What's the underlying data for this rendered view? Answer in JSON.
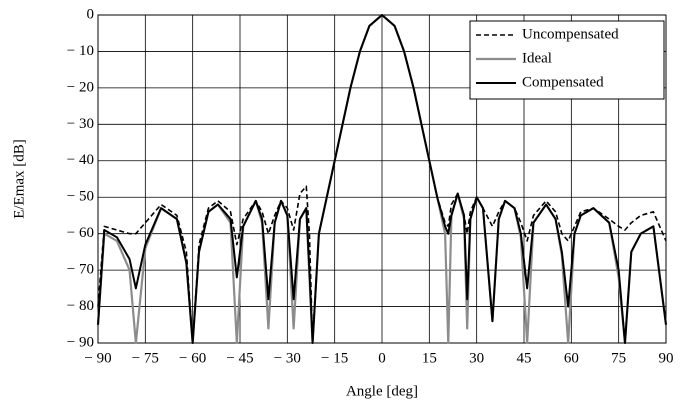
{
  "chart_data": {
    "type": "line",
    "xlabel": "Angle [deg]",
    "ylabel": "E/Emax [dB]",
    "x": [
      -90,
      -88,
      -84,
      -80,
      -78,
      -75,
      -70,
      -65,
      -62,
      -60,
      -58,
      -55,
      -52,
      -48,
      -46,
      -44,
      -40,
      -38,
      -36,
      -34,
      -32,
      -30,
      -28,
      -26,
      -24,
      -23,
      -22,
      -20,
      -17.5,
      -15,
      -12.5,
      -10,
      -7,
      -4,
      0,
      4,
      7,
      10,
      12.5,
      15,
      17.5,
      20,
      21,
      22,
      24,
      26,
      27,
      28,
      30,
      32,
      35,
      37,
      39,
      42,
      44,
      46,
      48,
      52,
      55,
      57,
      59,
      61,
      63,
      67,
      72,
      75,
      77,
      79,
      82,
      86,
      90
    ],
    "series": [
      {
        "name": "Uncompensated",
        "color": "#000000",
        "dashed": true,
        "width": 1.6,
        "values": [
          -80,
          -58,
          -59,
          -60,
          -60,
          -57,
          -52,
          -55,
          -65,
          -90,
          -63,
          -53,
          -51,
          -54,
          -63,
          -56,
          -51,
          -54,
          -60,
          -55,
          -51,
          -53,
          -59,
          -49,
          -47,
          -60,
          -90,
          -60,
          -50,
          -40,
          -30,
          -20,
          -10,
          -3,
          0,
          -3,
          -10,
          -20,
          -30,
          -40,
          -50,
          -57,
          -58,
          -52,
          -49,
          -55,
          -60,
          -54,
          -50,
          -53,
          -58,
          -54,
          -51,
          -53,
          -57,
          -62,
          -55,
          -51,
          -54,
          -60,
          -62,
          -58,
          -54,
          -53,
          -56,
          -58,
          -59,
          -57,
          -55,
          -54,
          -62
        ]
      },
      {
        "name": "Ideal",
        "color": "#8c8c8c",
        "dashed": false,
        "width": 2.2,
        "values": [
          -85,
          -60,
          -62,
          -70,
          -90,
          -64,
          -53,
          -56,
          -68,
          -90,
          -65,
          -54,
          -52,
          -57,
          -90,
          -58,
          -51,
          -57,
          -86,
          -57,
          -51,
          -55,
          -86,
          -56,
          -53,
          -72,
          -90,
          -60,
          -50,
          -40,
          -30,
          -20,
          -10,
          -3,
          0,
          -3,
          -10,
          -20,
          -30,
          -40,
          -50,
          -60,
          -90,
          -55,
          -49,
          -56,
          -86,
          -56,
          -50,
          -53,
          -84,
          -56,
          -51,
          -53,
          -61,
          -90,
          -57,
          -52,
          -56,
          -66,
          -90,
          -60,
          -55,
          -53,
          -57,
          -72,
          -90,
          -65,
          -60,
          -58,
          -85
        ]
      },
      {
        "name": "Compensated",
        "color": "#000000",
        "dashed": false,
        "width": 2,
        "values": [
          -85,
          -59,
          -61,
          -67,
          -75,
          -63,
          -53,
          -56,
          -68,
          -90,
          -65,
          -54,
          -52,
          -56,
          -72,
          -58,
          -51,
          -56,
          -78,
          -57,
          -51,
          -55,
          -78,
          -56,
          -53,
          -70,
          -90,
          -60,
          -50,
          -40,
          -30,
          -20,
          -10,
          -3,
          0,
          -3,
          -10,
          -20,
          -30,
          -40,
          -50,
          -58,
          -60,
          -55,
          -49,
          -55,
          -78,
          -56,
          -50,
          -53,
          -84,
          -56,
          -51,
          -53,
          -60,
          -75,
          -57,
          -52,
          -56,
          -65,
          -80,
          -60,
          -55,
          -53,
          -57,
          -70,
          -90,
          -65,
          -60,
          -58,
          -85
        ]
      }
    ],
    "xlim": [
      -90,
      90
    ],
    "xticks": [
      {
        "value": -90,
        "label": "− 90"
      },
      {
        "value": -75,
        "label": "− 75"
      },
      {
        "value": -60,
        "label": "− 60"
      },
      {
        "value": -45,
        "label": "− 45"
      },
      {
        "value": -30,
        "label": "− 30"
      },
      {
        "value": -15,
        "label": "− 15"
      },
      0,
      15,
      30,
      45,
      60,
      75,
      90
    ],
    "ylim": [
      -90,
      0
    ],
    "yticks": [
      {
        "value": -90,
        "label": "− 90"
      },
      {
        "value": -80,
        "label": "− 80"
      },
      {
        "value": -70,
        "label": "− 70"
      },
      {
        "value": -60,
        "label": "− 60"
      },
      {
        "value": -50,
        "label": "− 50"
      },
      {
        "value": -40,
        "label": "− 40"
      },
      {
        "value": -30,
        "label": "− 30"
      },
      {
        "value": -20,
        "label": "− 20"
      },
      {
        "value": -10,
        "label": "− 10"
      },
      0
    ],
    "grid": true,
    "legend": "top-right"
  }
}
